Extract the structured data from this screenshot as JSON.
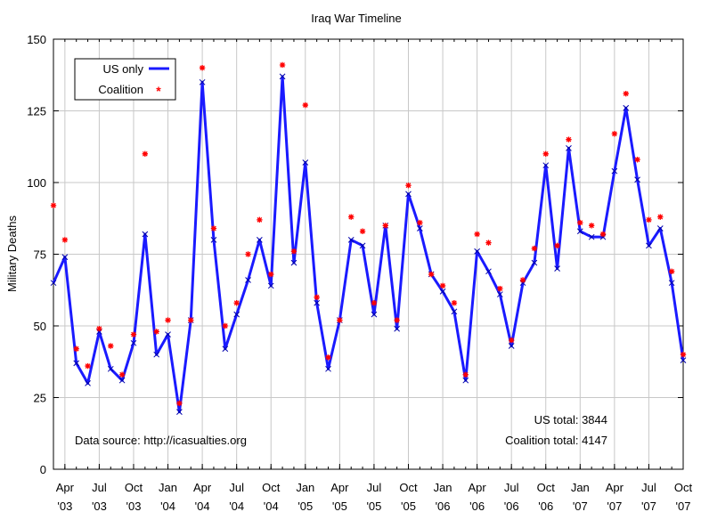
{
  "chart_data": {
    "type": "line",
    "title": "Iraq War Timeline",
    "xlabel": "",
    "ylabel": "Military Deaths",
    "ylim": [
      0,
      150
    ],
    "yticks": [
      0,
      25,
      50,
      75,
      100,
      125,
      150
    ],
    "grid": true,
    "legend_placement": "top-left",
    "x_start": "Mar 2003",
    "x_end": "Oct 2007",
    "xtick_labels": [
      {
        "month": "Apr",
        "year": "'03",
        "index": 1
      },
      {
        "month": "Jul",
        "year": "'03",
        "index": 4
      },
      {
        "month": "Oct",
        "year": "'03",
        "index": 7
      },
      {
        "month": "Jan",
        "year": "'04",
        "index": 10
      },
      {
        "month": "Apr",
        "year": "'04",
        "index": 13
      },
      {
        "month": "Jul",
        "year": "'04",
        "index": 16
      },
      {
        "month": "Oct",
        "year": "'04",
        "index": 19
      },
      {
        "month": "Jan",
        "year": "'05",
        "index": 22
      },
      {
        "month": "Apr",
        "year": "'05",
        "index": 25
      },
      {
        "month": "Jul",
        "year": "'05",
        "index": 28
      },
      {
        "month": "Oct",
        "year": "'05",
        "index": 31
      },
      {
        "month": "Jan",
        "year": "'06",
        "index": 34
      },
      {
        "month": "Apr",
        "year": "'06",
        "index": 37
      },
      {
        "month": "Jul",
        "year": "'06",
        "index": 40
      },
      {
        "month": "Oct",
        "year": "'06",
        "index": 43
      },
      {
        "month": "Jan",
        "year": "'07",
        "index": 46
      },
      {
        "month": "Apr",
        "year": "'07",
        "index": 49
      },
      {
        "month": "Jul",
        "year": "'07",
        "index": 52
      },
      {
        "month": "Oct",
        "year": "'07",
        "index": 55
      }
    ],
    "series": [
      {
        "name": "US only",
        "color": "#1a1aff",
        "style": "line-x",
        "values": [
          65,
          74,
          37,
          30,
          48,
          35,
          31,
          44,
          82,
          40,
          47,
          20,
          52,
          135,
          80,
          42,
          54,
          66,
          80,
          64,
          137,
          72,
          107,
          58,
          35,
          52,
          80,
          78,
          54,
          85,
          49,
          96,
          84,
          68,
          62,
          55,
          31,
          76,
          69,
          61,
          43,
          65,
          72,
          106,
          70,
          112,
          83,
          81,
          81,
          104,
          126,
          101,
          78,
          84,
          65,
          38
        ]
      },
      {
        "name": "Coalition",
        "color": "#ff0000",
        "style": "star",
        "values": [
          92,
          80,
          42,
          36,
          49,
          43,
          33,
          47,
          110,
          48,
          52,
          23,
          52,
          140,
          84,
          50,
          58,
          75,
          87,
          68,
          141,
          76,
          127,
          60,
          39,
          52,
          88,
          83,
          58,
          85,
          52,
          99,
          86,
          68,
          64,
          58,
          33,
          82,
          79,
          63,
          45,
          66,
          77,
          110,
          78,
          115,
          86,
          85,
          82,
          117,
          131,
          108,
          87,
          88,
          69,
          40
        ]
      }
    ],
    "annotations": {
      "source": "Data source: http://icasualties.org",
      "us_total": "US total: 3844",
      "coalition_total": "Coalition total: 4147"
    }
  }
}
